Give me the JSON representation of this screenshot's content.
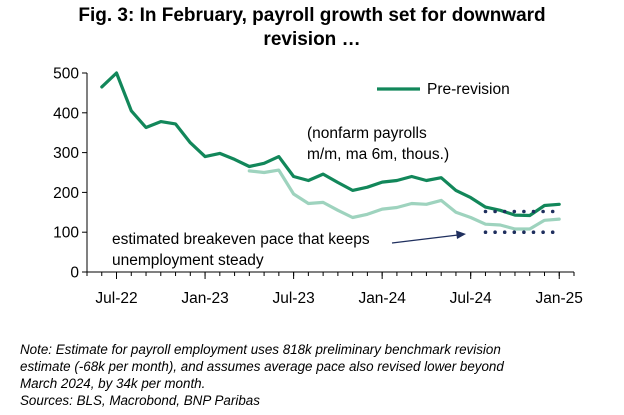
{
  "title_line1": "Fig. 3: In February, payroll growth set for downward",
  "title_line2": "revision …",
  "note_lines": [
    "Note: Estimate for payroll employment uses 818k preliminary benchmark revision",
    "estimate (-68k per month), and assumes average pace also revised lower beyond",
    "March 2024, by 34k per month."
  ],
  "sources": "Sources: BLS, Macrobond, BNP Paribas",
  "colors": {
    "pre_revision": "#12875A",
    "post_revision": "#9ED3BE",
    "breakeven": "#1F2F5E"
  },
  "chart_data": {
    "type": "line",
    "title": "Fig. 3: In February, payroll growth set for downward revision …",
    "xlabel": "",
    "ylabel": "",
    "ylim": [
      0,
      500
    ],
    "yticks": [
      0,
      100,
      200,
      300,
      400,
      500
    ],
    "xlim": [
      "2022-05",
      "2025-02"
    ],
    "xticks": [
      {
        "label": "Jul-22",
        "date": "2022-07"
      },
      {
        "label": "Jan-23",
        "date": "2023-01"
      },
      {
        "label": "Jul-23",
        "date": "2023-07"
      },
      {
        "label": "Jan-24",
        "date": "2024-01"
      },
      {
        "label": "Jul-24",
        "date": "2024-07"
      },
      {
        "label": "Jan-25",
        "date": "2025-01"
      }
    ],
    "grid": false,
    "legend": {
      "position": "top-right",
      "entries": [
        "Pre-revision"
      ]
    },
    "annotations": [
      {
        "lines": [
          "(nonfarm payrolls",
          "m/m, ma 6m, thous.)"
        ]
      },
      {
        "lines": [
          "estimated breakeven pace that keeps",
          "unemployment steady"
        ]
      }
    ],
    "series": [
      {
        "name": "Pre-revision",
        "style": "solid",
        "points": [
          [
            "2022-06",
            465
          ],
          [
            "2022-07",
            500
          ],
          [
            "2022-08",
            405
          ],
          [
            "2022-09",
            363
          ],
          [
            "2022-10",
            378
          ],
          [
            "2022-11",
            372
          ],
          [
            "2022-12",
            325
          ],
          [
            "2023-01",
            290
          ],
          [
            "2023-02",
            298
          ],
          [
            "2023-03",
            283
          ],
          [
            "2023-04",
            265
          ],
          [
            "2023-05",
            273
          ],
          [
            "2023-06",
            290
          ],
          [
            "2023-07",
            240
          ],
          [
            "2023-08",
            230
          ],
          [
            "2023-09",
            246
          ],
          [
            "2023-10",
            225
          ],
          [
            "2023-11",
            205
          ],
          [
            "2023-12",
            213
          ],
          [
            "2024-01",
            226
          ],
          [
            "2024-02",
            230
          ],
          [
            "2024-03",
            240
          ],
          [
            "2024-04",
            230
          ],
          [
            "2024-05",
            237
          ],
          [
            "2024-06",
            205
          ],
          [
            "2024-07",
            187
          ],
          [
            "2024-08",
            163
          ],
          [
            "2024-09",
            155
          ],
          [
            "2024-10",
            143
          ],
          [
            "2024-11",
            142
          ],
          [
            "2024-12",
            167
          ],
          [
            "2025-01",
            170
          ]
        ]
      },
      {
        "style": "solid",
        "points": [
          [
            "2023-04",
            254
          ],
          [
            "2023-05",
            250
          ],
          [
            "2023-06",
            256
          ],
          [
            "2023-07",
            196
          ],
          [
            "2023-08",
            172
          ],
          [
            "2023-09",
            175
          ],
          [
            "2023-10",
            155
          ],
          [
            "2023-11",
            137
          ],
          [
            "2023-12",
            145
          ],
          [
            "2024-01",
            158
          ],
          [
            "2024-02",
            162
          ],
          [
            "2024-03",
            172
          ],
          [
            "2024-04",
            170
          ],
          [
            "2024-05",
            180
          ],
          [
            "2024-06",
            150
          ],
          [
            "2024-07",
            137
          ],
          [
            "2024-08",
            120
          ],
          [
            "2024-09",
            118
          ],
          [
            "2024-10",
            108
          ],
          [
            "2024-11",
            108
          ],
          [
            "2024-12",
            130
          ],
          [
            "2025-01",
            133
          ]
        ]
      },
      {
        "style": "dotted",
        "points": [
          [
            "2024-08",
            152
          ],
          [
            "2025-01",
            152
          ]
        ]
      },
      {
        "style": "dotted",
        "points": [
          [
            "2024-08",
            100
          ],
          [
            "2025-01",
            100
          ]
        ]
      }
    ]
  }
}
